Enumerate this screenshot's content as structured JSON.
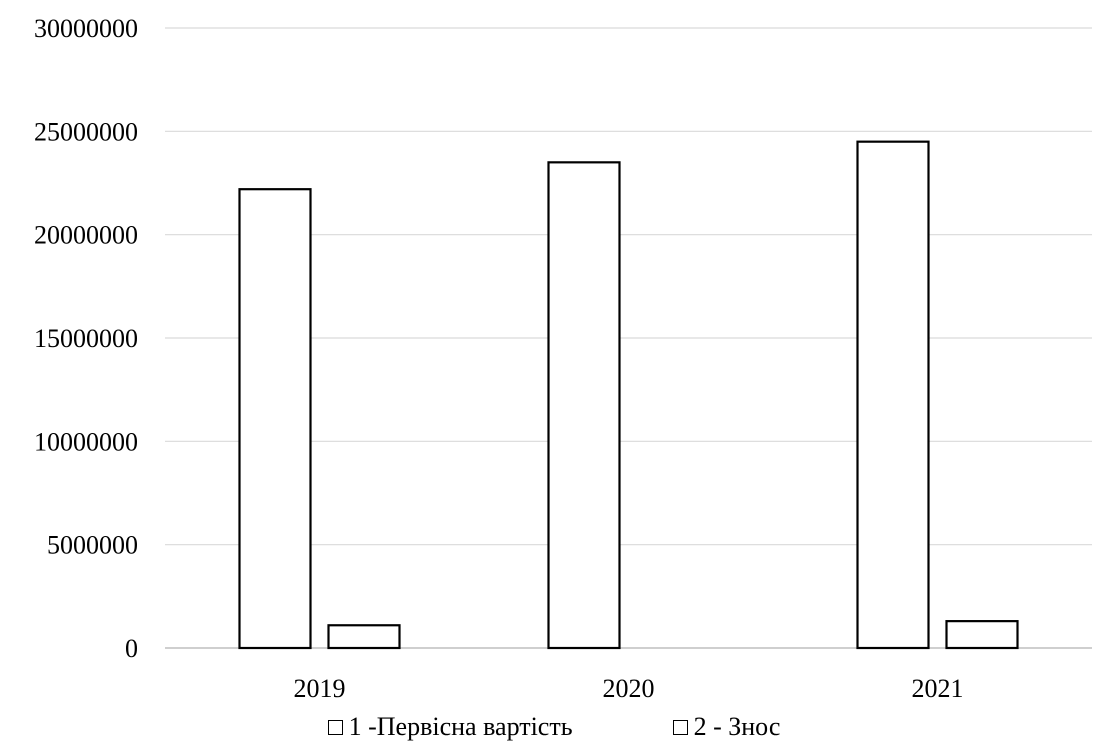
{
  "chart_data": {
    "type": "bar",
    "title": "",
    "xlabel": "",
    "ylabel": "",
    "categories": [
      "2019",
      "2020",
      "2021"
    ],
    "series": [
      {
        "name": "1 -Первісна вартість",
        "values": [
          22200000,
          23500000,
          24500000
        ]
      },
      {
        "name": "2 - Знос",
        "values": [
          1100000,
          0,
          1300000
        ]
      }
    ],
    "ylim": [
      0,
      30000000
    ],
    "y_ticks": [
      "0",
      "5000000",
      "10000000",
      "15000000",
      "20000000",
      "25000000",
      "30000000"
    ],
    "grid": true,
    "legend_position": "bottom",
    "colors": {
      "bar_fill": "#ffffff",
      "bar_stroke": "#000000",
      "grid": "#d9d9d9",
      "axis": "#bfbfbf",
      "text": "#000000"
    }
  }
}
